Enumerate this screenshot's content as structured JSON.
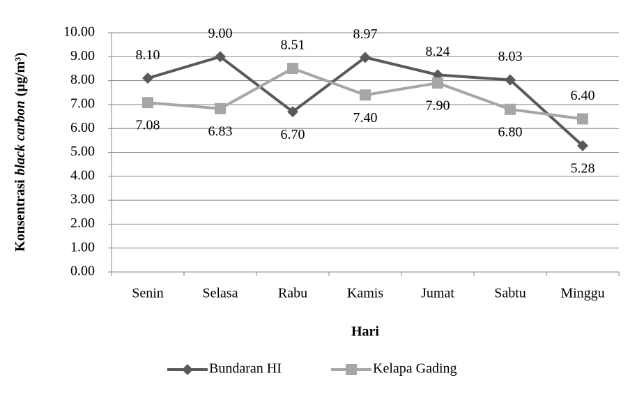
{
  "chart_data": {
    "type": "line",
    "ylabel": [
      "Konsentrasi",
      "black carbon",
      "(µg/m³)"
    ],
    "xlabel": "Hari",
    "categories": [
      "Senin",
      "Selasa",
      "Rabu",
      "Kamis",
      "Jumat",
      "Sabtu",
      "Minggu"
    ],
    "series": [
      {
        "name": "Bundaran HI",
        "color": "#595959",
        "marker": "diamond",
        "values": [
          8.1,
          9,
          6.7,
          8.97,
          8.24,
          8.03,
          5.28
        ],
        "value_labels": [
          "8.10",
          "9.00",
          "6.70",
          "8.97",
          "8.24",
          "8.03",
          "5.28"
        ]
      },
      {
        "name": "Kelapa Gading",
        "color": "#a6a6a6",
        "marker": "square",
        "values": [
          7.08,
          6.83,
          8.51,
          7.4,
          7.9,
          6.8,
          6.4
        ],
        "value_labels": [
          "7.08",
          "6.83",
          "8.51",
          "7.40",
          "7.90",
          "6.80",
          "6.40"
        ]
      }
    ],
    "ylim": [
      0,
      10
    ],
    "yticks": [
      {
        "value": 0,
        "label": "0.00"
      },
      {
        "value": 1,
        "label": "1.00"
      },
      {
        "value": 2,
        "label": "2.00"
      },
      {
        "value": 3,
        "label": "3.00"
      },
      {
        "value": 4,
        "label": "4.00"
      },
      {
        "value": 5,
        "label": "5.00"
      },
      {
        "value": 6,
        "label": "6.00"
      },
      {
        "value": 7,
        "label": "7.00"
      },
      {
        "value": 8,
        "label": "8.00"
      },
      {
        "value": 9,
        "label": "9.00"
      },
      {
        "value": 10,
        "label": "10.00"
      }
    ],
    "grid": true,
    "legend": "bottom"
  }
}
